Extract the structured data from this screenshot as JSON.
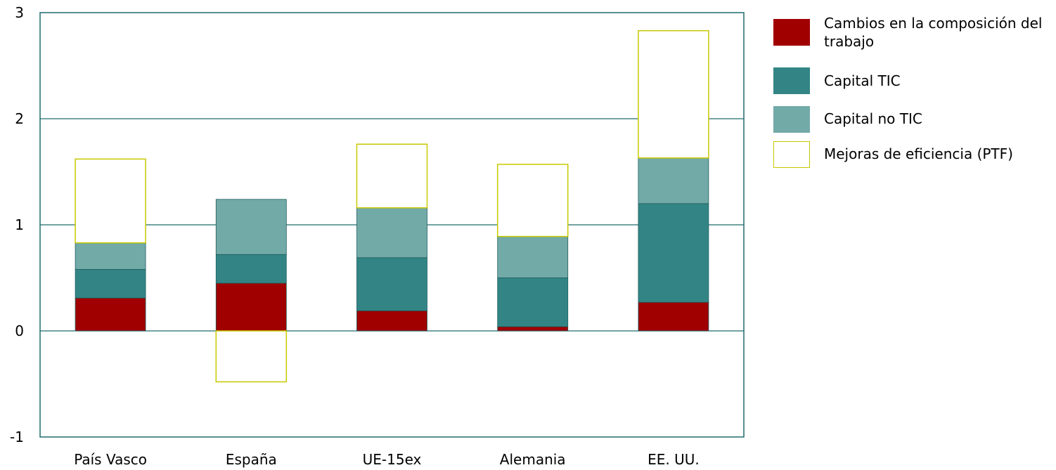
{
  "chart_data": {
    "type": "bar",
    "stacked": true,
    "categories": [
      "País Vasco",
      "España",
      "UE-15ex",
      "Alemania",
      "EE. UU."
    ],
    "series": [
      {
        "name": "Cambios en la composición del trabajo",
        "color": "#a00000",
        "values": [
          0.31,
          0.45,
          0.19,
          0.04,
          0.27
        ],
        "style": "filled"
      },
      {
        "name": "Capital TIC",
        "color": "#338585",
        "values": [
          0.27,
          0.27,
          0.5,
          0.46,
          0.93
        ],
        "style": "filled"
      },
      {
        "name": "Capital no TIC",
        "color": "#72aaa8",
        "values": [
          0.25,
          0.52,
          0.47,
          0.39,
          0.43
        ],
        "style": "filled"
      },
      {
        "name": "Mejoras de eficiencia (PTF)",
        "color": "#c8c800",
        "values": [
          0.79,
          -0.48,
          0.6,
          0.68,
          1.2
        ],
        "style": "outline"
      }
    ],
    "ylim": [
      -1,
      3
    ],
    "yticks": [
      "-1",
      "0",
      "1",
      "2",
      "3"
    ],
    "grid": true,
    "legend_position": "right",
    "title": "",
    "xlabel": "",
    "ylabel": ""
  },
  "legend": {
    "items": [
      {
        "label": "Cambios en la composición del trabajo"
      },
      {
        "label": "Capital TIC"
      },
      {
        "label": "Capital no TIC"
      },
      {
        "label": "Mejoras de eficiencia (PTF)"
      }
    ]
  }
}
